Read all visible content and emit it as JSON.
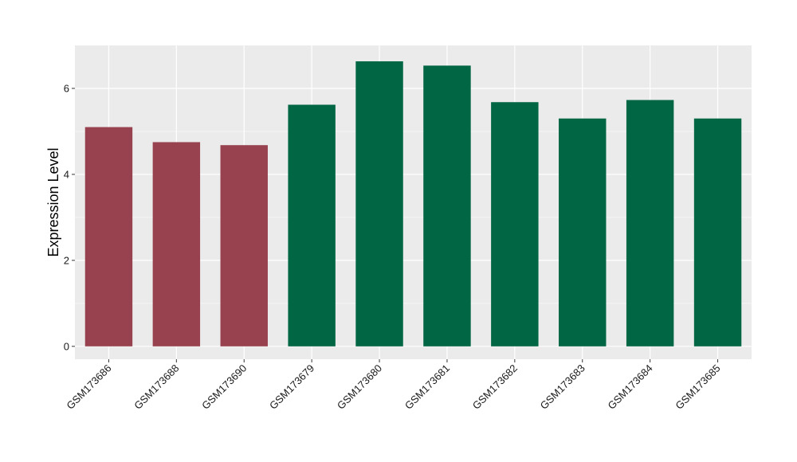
{
  "chart_data": {
    "type": "bar",
    "title": "",
    "xlabel": "",
    "ylabel": "Expression Level",
    "ylim": [
      -0.3,
      7.0
    ],
    "yticks": [
      0,
      2,
      4,
      6
    ],
    "grid": true,
    "legend": "none",
    "categories": [
      "GSM173686",
      "GSM173688",
      "GSM173690",
      "GSM173679",
      "GSM173680",
      "GSM173681",
      "GSM173682",
      "GSM173683",
      "GSM173684",
      "GSM173685"
    ],
    "values": [
      5.1,
      4.75,
      4.68,
      5.62,
      6.63,
      6.53,
      5.68,
      5.3,
      5.73,
      5.3
    ],
    "groups": [
      "a",
      "a",
      "a",
      "b",
      "b",
      "b",
      "b",
      "b",
      "b",
      "b"
    ],
    "colors": {
      "a": "#99424f",
      "b": "#006644",
      "panel": "#ebebeb",
      "grid_major": "#ffffff",
      "grid_minor": "#f5f5f5"
    }
  }
}
